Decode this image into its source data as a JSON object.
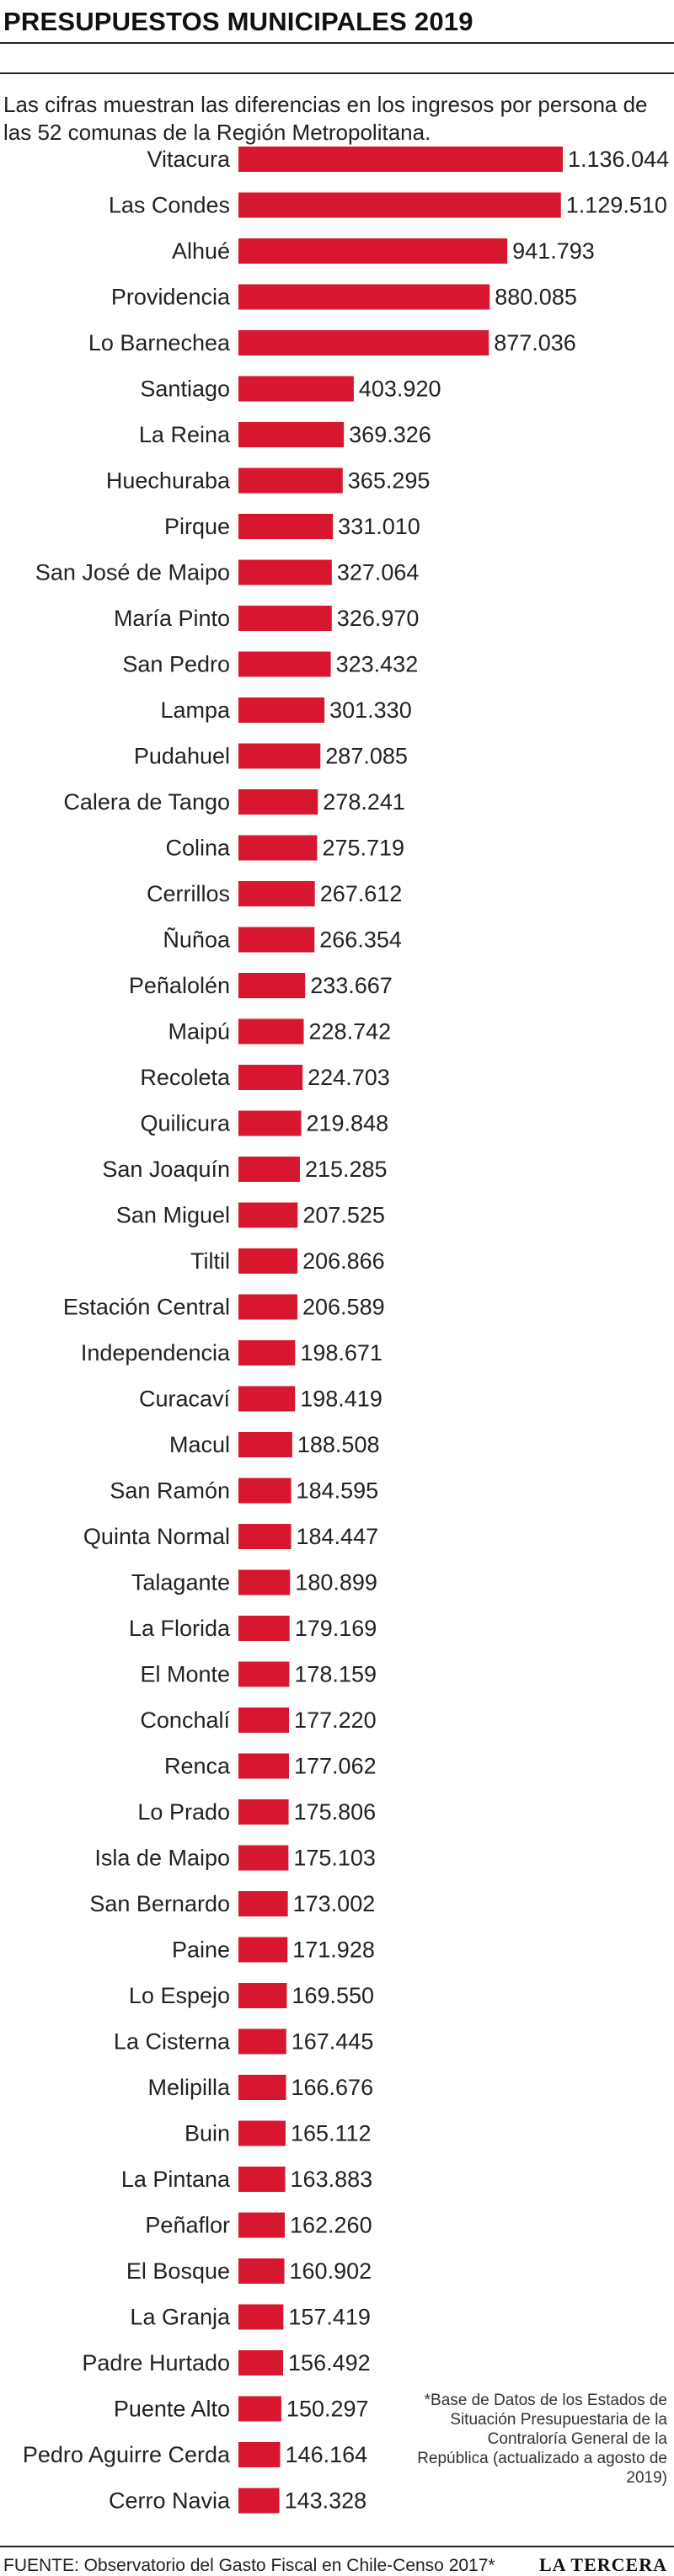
{
  "header": {
    "title": "PRESUPUESTOS MUNICIPALES 2019",
    "subtitle": "Las cifras muestran las diferencias en los ingresos por persona de las 52 comunas de la Región Metropolitana."
  },
  "chart_data": {
    "type": "bar",
    "orientation": "horizontal",
    "bar_color": "#d7172f",
    "categories": [
      "Vitacura",
      "Las Condes",
      "Alhué",
      "Providencia",
      "Lo Barnechea",
      "Santiago",
      "La Reina",
      "Huechuraba",
      "Pirque",
      "San José de Maipo",
      "María Pinto",
      "San Pedro",
      "Lampa",
      "Pudahuel",
      "Calera de Tango",
      "Colina",
      "Cerrillos",
      "Ñuñoa",
      "Peñalolén",
      "Maipú",
      "Recoleta",
      "Quilicura",
      "San Joaquín",
      "San Miguel",
      "Tiltil",
      "Estación Central",
      "Independencia",
      "Curacaví",
      "Macul",
      "San Ramón",
      "Quinta Normal",
      "Talagante",
      "La Florida",
      "El Monte",
      "Conchalí",
      "Renca",
      "Lo Prado",
      "Isla de Maipo",
      "San Bernardo",
      "Paine",
      "Lo Espejo",
      "La Cisterna",
      "Melipilla",
      "Buin",
      "La Pintana",
      "Peñaflor",
      "El Bosque",
      "La Granja",
      "Padre Hurtado",
      "Puente Alto",
      "Pedro Aguirre Cerda",
      "Cerro Navia"
    ],
    "values": [
      1136044,
      1129510,
      941793,
      880085,
      877036,
      403920,
      369326,
      365295,
      331010,
      327064,
      326970,
      323432,
      301330,
      287085,
      278241,
      275719,
      267612,
      266354,
      233667,
      228742,
      224703,
      219848,
      215285,
      207525,
      206866,
      206589,
      198671,
      198419,
      188508,
      184595,
      184447,
      180899,
      179169,
      178159,
      177220,
      177062,
      175806,
      175103,
      173002,
      171928,
      169550,
      167445,
      166676,
      165112,
      163883,
      162260,
      160902,
      157419,
      156492,
      150297,
      146164,
      143328
    ],
    "value_labels": [
      "1.136.044",
      "1.129.510",
      "941.793",
      "880.085",
      "877.036",
      "403.920",
      "369.326",
      "365.295",
      "331.010",
      "327.064",
      "326.970",
      "323.432",
      "301.330",
      "287.085",
      "278.241",
      "275.719",
      "267.612",
      "266.354",
      "233.667",
      "228.742",
      "224.703",
      "219.848",
      "215.285",
      "207.525",
      "206.866",
      "206.589",
      "198.671",
      "198.419",
      "188.508",
      "184.595",
      "184.447",
      "180.899",
      "179.169",
      "178.159",
      "177.220",
      "177.062",
      "175.806",
      "175.103",
      "173.002",
      "171.928",
      "169.550",
      "167.445",
      "166.676",
      "165.112",
      "163.883",
      "162.260",
      "160.902",
      "157.419",
      "156.492",
      "150.297",
      "146.164",
      "143.328"
    ]
  },
  "footer": {
    "note": "*Base de Datos de los Estados de Situación Presupuestaria de la Contraloría General de la República (actualizado a agosto de 2019)",
    "source": "FUENTE: Observatorio del Gasto Fiscal en Chile-Censo 2017*",
    "brand": "LA TERCERA"
  }
}
